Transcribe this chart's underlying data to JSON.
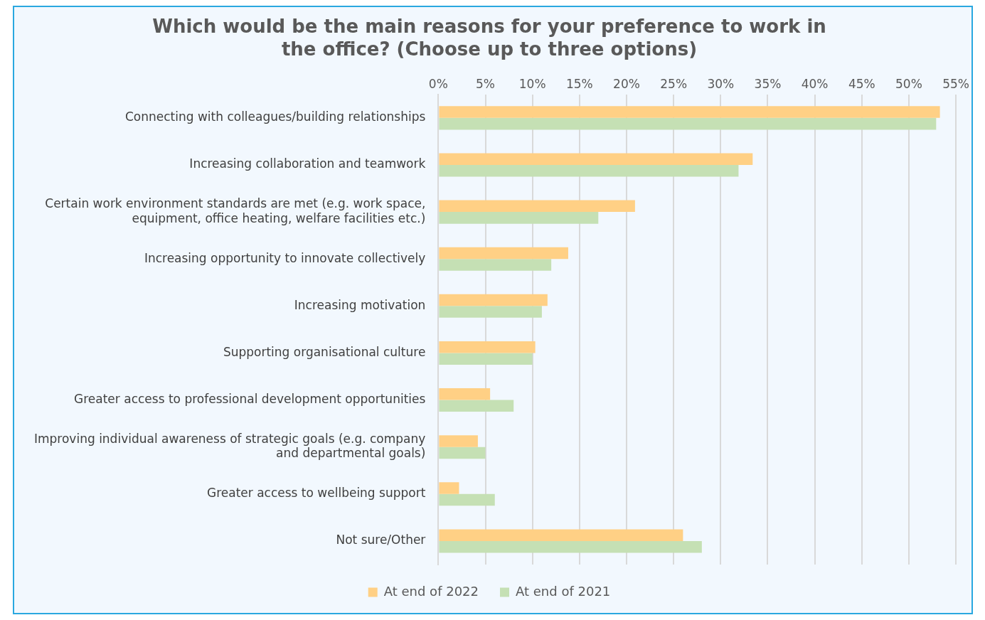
{
  "chart_data": {
    "type": "bar",
    "orientation": "horizontal",
    "title": "Which would be the main reasons for your preference to work in the office? (Choose up to three options)",
    "categories": [
      "Connecting with colleagues/building relationships",
      "Increasing collaboration and teamwork",
      "Certain work environment standards are met (e.g. work space, equipment, office heating, welfare facilities etc.)",
      "Increasing opportunity to innovate collectively",
      "Increasing motivation",
      "Supporting organisational culture",
      "Greater access to professional development opportunities",
      "Improving individual awareness of strategic goals (e.g. company and departmental goals)",
      "Greater access to wellbeing support",
      "Not sure/Other"
    ],
    "series": [
      {
        "name": "At end of 2022",
        "color": "#ffd085",
        "values": [
          53.3,
          33.4,
          20.9,
          13.8,
          11.6,
          10.3,
          5.5,
          4.2,
          2.2,
          26.0
        ]
      },
      {
        "name": "At end of 2021",
        "color": "#c5e0b4",
        "values": [
          52.9,
          31.9,
          17.0,
          12.0,
          11.0,
          10.0,
          8.0,
          5.0,
          6.0,
          28.0
        ]
      }
    ],
    "xlim": [
      0,
      55
    ],
    "xticks": [
      {
        "value": 0,
        "label": "0%"
      },
      {
        "value": 5,
        "label": "5%"
      },
      {
        "value": 10,
        "label": "10%"
      },
      {
        "value": 15,
        "label": "15%"
      },
      {
        "value": 20,
        "label": "20%"
      },
      {
        "value": 25,
        "label": "25%"
      },
      {
        "value": 30,
        "label": "30%"
      },
      {
        "value": 35,
        "label": "35%"
      },
      {
        "value": 40,
        "label": "40%"
      },
      {
        "value": 45,
        "label": "45%"
      },
      {
        "value": 50,
        "label": "50%"
      },
      {
        "value": 55,
        "label": "55%"
      }
    ],
    "grid": "x",
    "legend": "bottom"
  }
}
